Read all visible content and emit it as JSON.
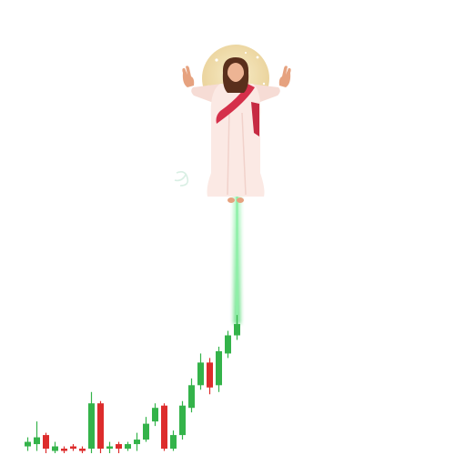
{
  "colors": {
    "up": "#34b34a",
    "down": "#dd2c2c",
    "glow": "#8ef0a8",
    "halo": "#f1dca6",
    "robe": "#fbe9e4",
    "sash": "#d5304a",
    "skin": "#e6a27f",
    "hair": "#5a2f1c"
  },
  "chart_data": {
    "type": "candlestick",
    "title": "",
    "xlabel": "",
    "ylabel": "",
    "grid": false,
    "legend": "none",
    "ylim": [
      0,
      100
    ],
    "candles": [
      {
        "o": 1.5,
        "c": 2.5,
        "h": 3.5,
        "l": 0.5
      },
      {
        "o": 2.0,
        "c": 3.5,
        "h": 7.0,
        "l": 0.5
      },
      {
        "o": 4.0,
        "c": 1.0,
        "h": 4.5,
        "l": 0.0
      },
      {
        "o": 0.5,
        "c": 1.5,
        "h": 2.5,
        "l": 0.0
      },
      {
        "o": 1.0,
        "c": 0.5,
        "h": 1.5,
        "l": 0.0
      },
      {
        "o": 1.5,
        "c": 1.0,
        "h": 2.0,
        "l": 0.5
      },
      {
        "o": 1.0,
        "c": 0.5,
        "h": 1.5,
        "l": 0.0
      },
      {
        "o": 1.0,
        "c": 11.0,
        "h": 13.5,
        "l": 0.0
      },
      {
        "o": 11.0,
        "c": 1.0,
        "h": 11.5,
        "l": 0.0
      },
      {
        "o": 1.0,
        "c": 1.5,
        "h": 2.5,
        "l": 0.0
      },
      {
        "o": 2.0,
        "c": 1.0,
        "h": 2.5,
        "l": 0.0
      },
      {
        "o": 1.0,
        "c": 2.0,
        "h": 2.5,
        "l": 0.5
      },
      {
        "o": 2.0,
        "c": 3.0,
        "h": 4.5,
        "l": 0.5
      },
      {
        "o": 3.0,
        "c": 6.5,
        "h": 8.0,
        "l": 2.5
      },
      {
        "o": 7.0,
        "c": 10.0,
        "h": 11.0,
        "l": 6.0
      },
      {
        "o": 10.5,
        "c": 1.0,
        "h": 11.0,
        "l": 0.5
      },
      {
        "o": 1.0,
        "c": 4.0,
        "h": 5.0,
        "l": 0.5
      },
      {
        "o": 4.0,
        "c": 10.5,
        "h": 11.5,
        "l": 3.0
      },
      {
        "o": 10.0,
        "c": 15.0,
        "h": 16.5,
        "l": 9.0
      },
      {
        "o": 15.0,
        "c": 20.0,
        "h": 22.0,
        "l": 14.0
      },
      {
        "o": 20.0,
        "c": 14.5,
        "h": 21.0,
        "l": 13.0
      },
      {
        "o": 15.0,
        "c": 22.5,
        "h": 23.5,
        "l": 13.5
      },
      {
        "o": 22.0,
        "c": 26.0,
        "h": 27.0,
        "l": 21.0
      },
      {
        "o": 26.0,
        "c": 28.5,
        "h": 90.0,
        "l": 25.0
      }
    ]
  }
}
